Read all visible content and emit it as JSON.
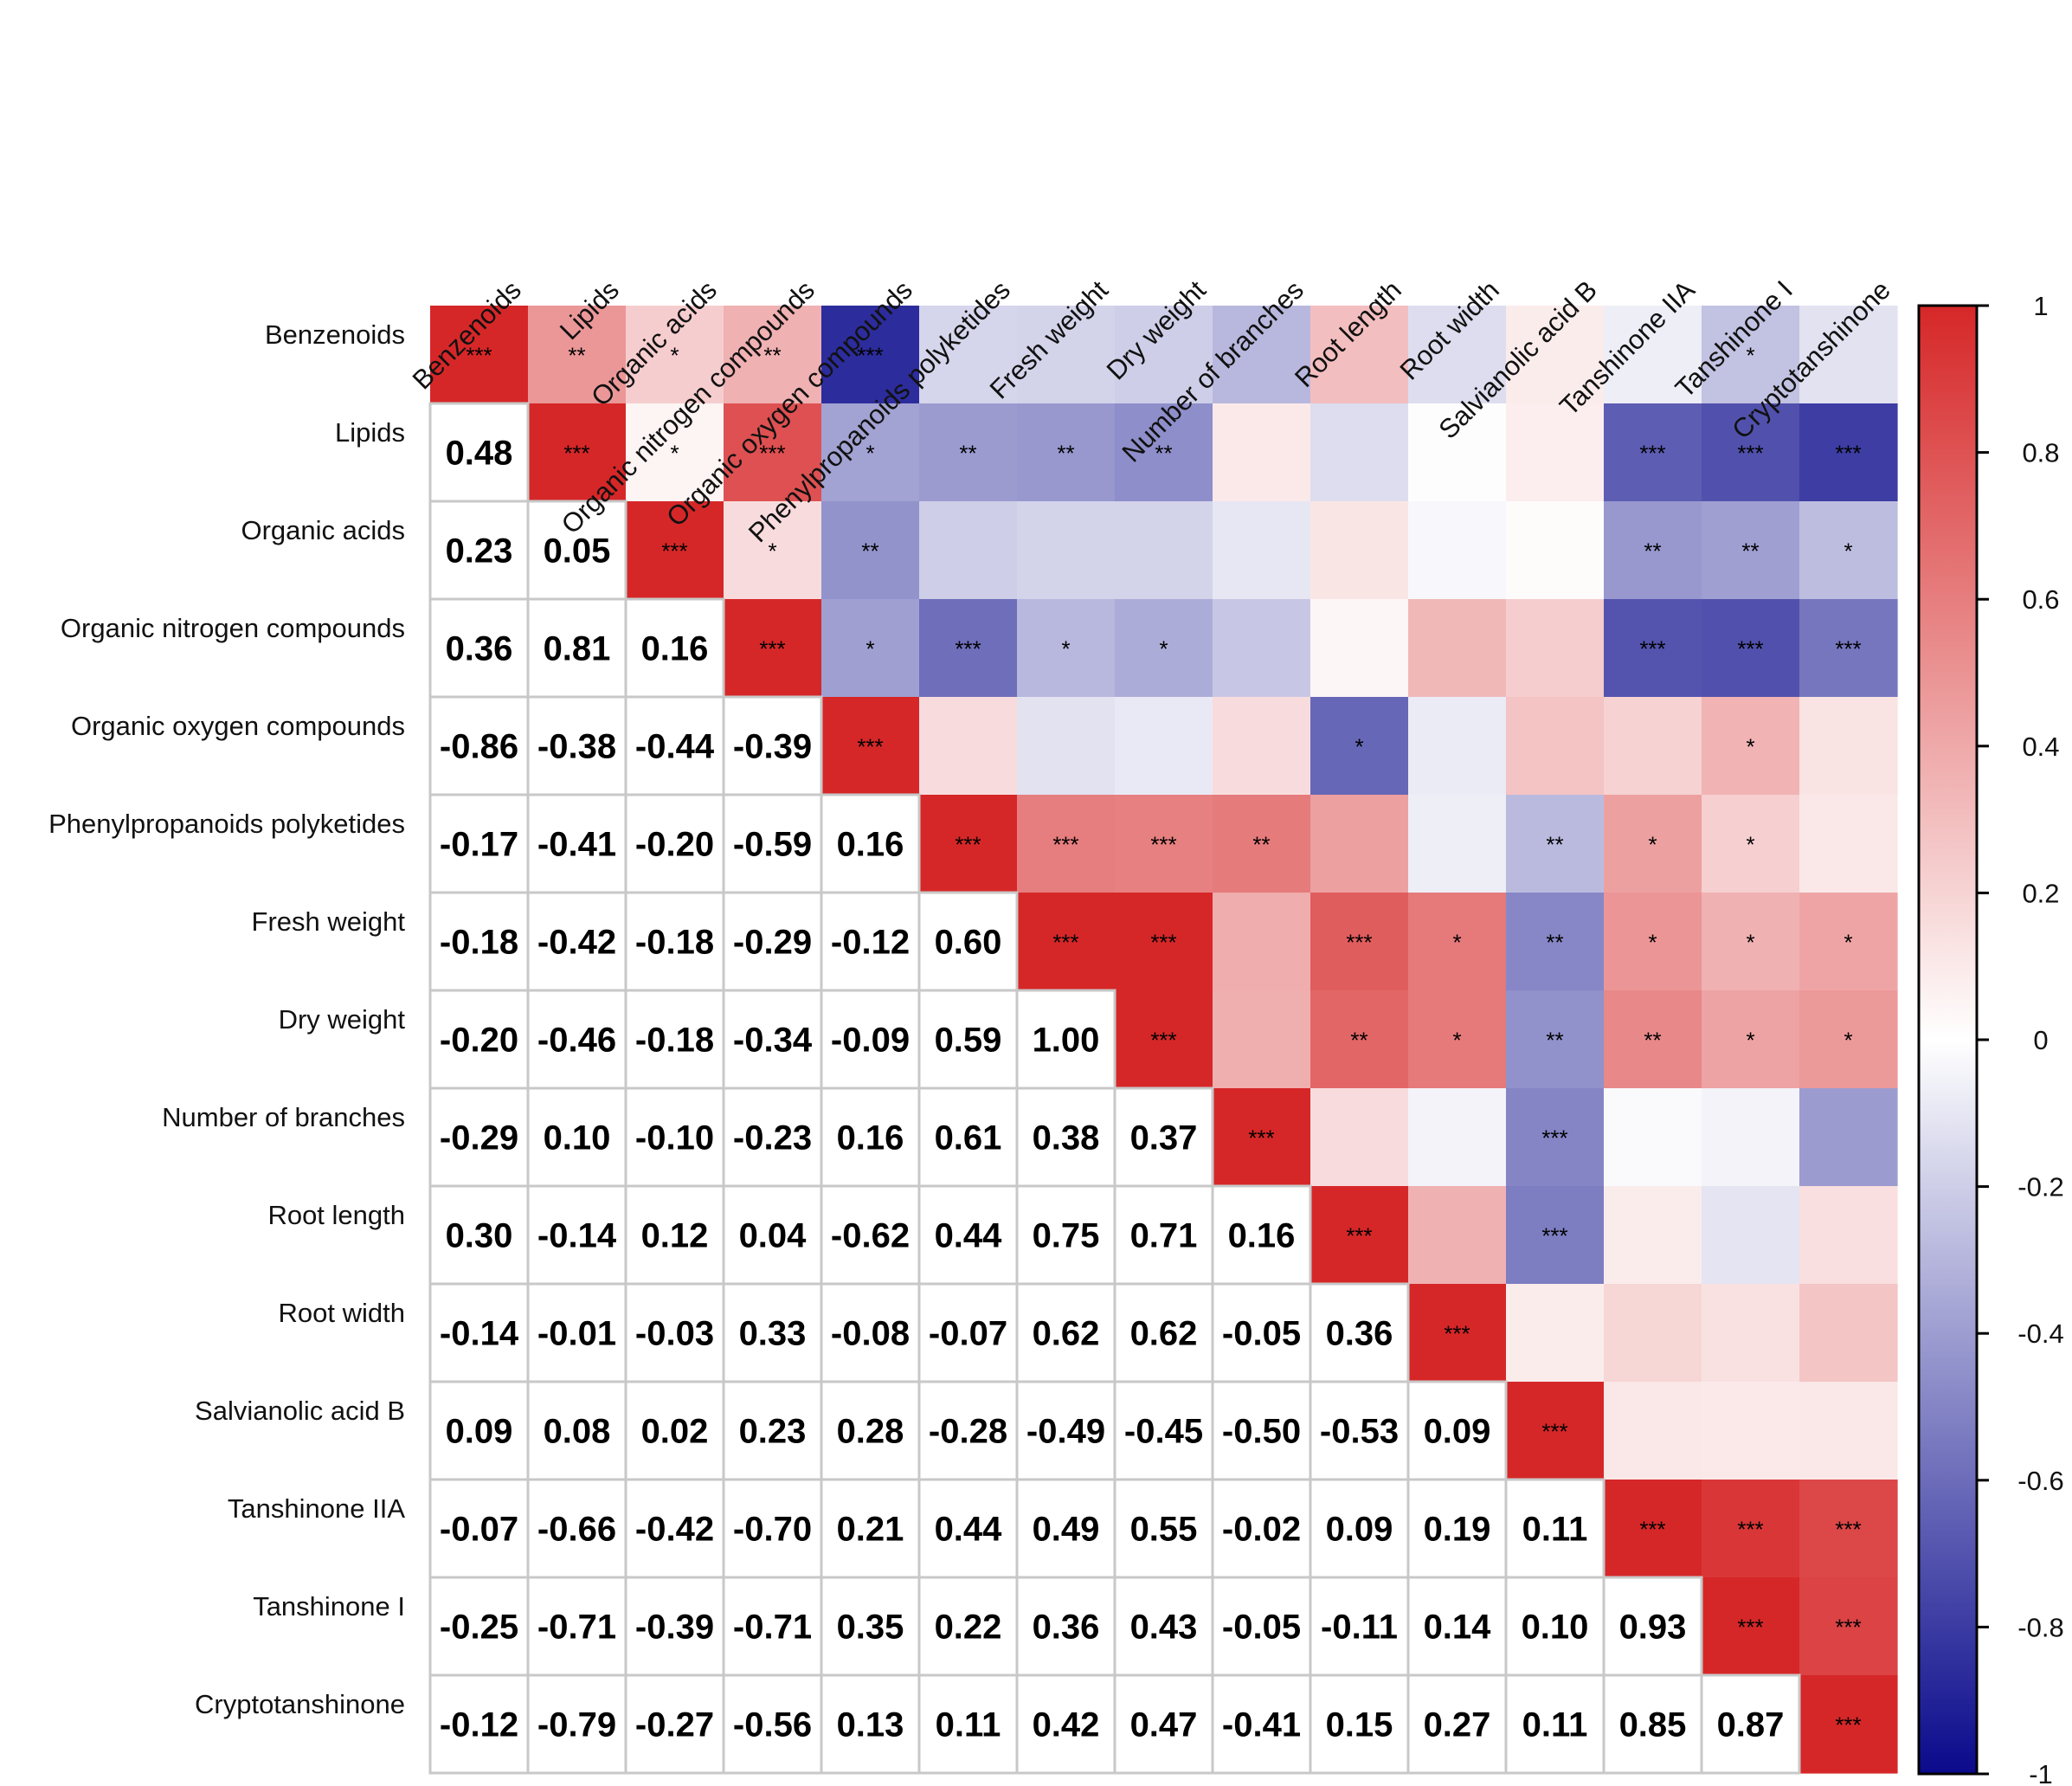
{
  "chart_data": {
    "type": "heatmap",
    "title": "",
    "variables": [
      "Benzenoids",
      "Lipids",
      "Organic acids",
      "Organic nitrogen compounds",
      "Organic oxygen compounds",
      "Phenylpropanoids polyketides",
      "Fresh weight",
      "Dry weight",
      "Number of branches",
      "Root length",
      "Root width",
      "Salvianolic acid B",
      "Tanshinone IIA",
      "Tanshinone I",
      "Cryptotanshinone"
    ],
    "lower_triangle_display": "numeric value",
    "upper_triangle_display": "color with significance stars",
    "correlations": [
      [
        "1.00",
        "0.48",
        "0.23",
        "0.36",
        "-0.86",
        "-0.17",
        "-0.18",
        "-0.20",
        "-0.29",
        "0.30",
        "-0.14",
        "0.09",
        "-0.07",
        "-0.25",
        "-0.12"
      ],
      [
        "0.48",
        "1.00",
        "0.05",
        "0.81",
        "-0.38",
        "-0.41",
        "-0.42",
        "-0.46",
        "0.10",
        "-0.14",
        "-0.01",
        "0.08",
        "-0.66",
        "-0.71",
        "-0.79"
      ],
      [
        "0.23",
        "0.05",
        "1.00",
        "0.16",
        "-0.44",
        "-0.20",
        "-0.18",
        "-0.18",
        "-0.10",
        "0.12",
        "-0.03",
        "0.02",
        "-0.42",
        "-0.39",
        "-0.27"
      ],
      [
        "0.36",
        "0.81",
        "0.16",
        "1.00",
        "-0.39",
        "-0.59",
        "-0.29",
        "-0.34",
        "-0.23",
        "0.04",
        "0.33",
        "0.23",
        "-0.70",
        "-0.71",
        "-0.56"
      ],
      [
        "-0.86",
        "-0.38",
        "-0.44",
        "-0.39",
        "1.00",
        "0.16",
        "-0.12",
        "-0.09",
        "0.16",
        "-0.62",
        "-0.08",
        "0.28",
        "0.21",
        "0.35",
        "0.13"
      ],
      [
        "-0.17",
        "-0.41",
        "-0.20",
        "-0.59",
        "0.16",
        "1.00",
        "0.60",
        "0.59",
        "0.61",
        "0.44",
        "-0.07",
        "-0.28",
        "0.44",
        "0.22",
        "0.11"
      ],
      [
        "-0.18",
        "-0.42",
        "-0.18",
        "-0.29",
        "-0.12",
        "0.60",
        "1.00",
        "1.00",
        "0.38",
        "0.75",
        "0.62",
        "-0.49",
        "0.49",
        "0.36",
        "0.42"
      ],
      [
        "-0.20",
        "-0.46",
        "-0.18",
        "-0.34",
        "-0.09",
        "0.59",
        "1.00",
        "1.00",
        "0.37",
        "0.71",
        "0.62",
        "-0.45",
        "0.55",
        "0.43",
        "0.47"
      ],
      [
        "-0.29",
        "0.10",
        "-0.10",
        "-0.23",
        "0.16",
        "0.61",
        "0.38",
        "0.37",
        "1.00",
        "0.16",
        "-0.05",
        "-0.50",
        "-0.02",
        "-0.05",
        "-0.41"
      ],
      [
        "0.30",
        "-0.14",
        "0.12",
        "0.04",
        "-0.62",
        "0.44",
        "0.75",
        "0.71",
        "0.16",
        "1.00",
        "0.36",
        "-0.53",
        "0.09",
        "-0.11",
        "0.15"
      ],
      [
        "-0.14",
        "-0.01",
        "-0.03",
        "0.33",
        "-0.08",
        "-0.07",
        "0.62",
        "0.62",
        "-0.05",
        "0.36",
        "1.00",
        "0.09",
        "0.19",
        "0.14",
        "0.27"
      ],
      [
        "0.09",
        "0.08",
        "0.02",
        "0.23",
        "0.28",
        "-0.28",
        "-0.49",
        "-0.45",
        "-0.50",
        "-0.53",
        "0.09",
        "1.00",
        "0.11",
        "0.10",
        "0.11"
      ],
      [
        "-0.07",
        "-0.66",
        "-0.42",
        "-0.70",
        "0.21",
        "0.44",
        "0.49",
        "0.55",
        "-0.02",
        "0.09",
        "0.19",
        "0.11",
        "1.00",
        "0.93",
        "0.85"
      ],
      [
        "-0.25",
        "-0.71",
        "-0.39",
        "-0.71",
        "0.35",
        "0.22",
        "0.36",
        "0.43",
        "-0.05",
        "-0.11",
        "0.14",
        "0.10",
        "0.93",
        "1.00",
        "0.87"
      ],
      [
        "-0.12",
        "-0.79",
        "-0.27",
        "-0.56",
        "0.13",
        "0.11",
        "0.42",
        "0.47",
        "-0.41",
        "0.15",
        "0.27",
        "0.11",
        "0.85",
        "0.87",
        "1.00"
      ]
    ],
    "significance": [
      [
        "***",
        "**",
        "*",
        "**",
        "***",
        "",
        "",
        "",
        "",
        "",
        "",
        "",
        "",
        "*",
        ""
      ],
      [
        "",
        "***",
        "*",
        "***",
        "*",
        "**",
        "**",
        "**",
        "",
        "",
        "",
        "",
        "***",
        "***",
        "***"
      ],
      [
        "",
        "",
        "***",
        "*",
        "**",
        "",
        "",
        "",
        "",
        "",
        "",
        "",
        "**",
        "**",
        "*"
      ],
      [
        "",
        "",
        "",
        "***",
        "*",
        "***",
        "*",
        "*",
        "",
        "",
        "",
        "",
        "***",
        "***",
        "***"
      ],
      [
        "",
        "",
        "",
        "",
        "***",
        "",
        "",
        "",
        "",
        "*",
        "",
        "",
        "",
        "*",
        ""
      ],
      [
        "",
        "",
        "",
        "",
        "",
        "***",
        "***",
        "***",
        "**",
        "",
        "",
        "**",
        "*",
        "*",
        ""
      ],
      [
        "",
        "",
        "",
        "",
        "",
        "",
        "***",
        "***",
        "",
        "***",
        "*",
        "**",
        "*",
        "*",
        "*"
      ],
      [
        "",
        "",
        "",
        "",
        "",
        "",
        "",
        "***",
        "",
        "**",
        "*",
        "**",
        "**",
        "*",
        "*"
      ],
      [
        "",
        "",
        "",
        "",
        "",
        "",
        "",
        "",
        "***",
        "",
        "",
        "***",
        "",
        "",
        ""
      ],
      [
        "",
        "",
        "",
        "",
        "",
        "",
        "",
        "",
        "",
        "***",
        "",
        "***",
        "",
        "",
        ""
      ],
      [
        "",
        "",
        "",
        "",
        "",
        "",
        "",
        "",
        "",
        "",
        "***",
        "",
        "",
        "",
        ""
      ],
      [
        "",
        "",
        "",
        "",
        "",
        "",
        "",
        "",
        "",
        "",
        "",
        "***",
        "",
        "",
        ""
      ],
      [
        "",
        "",
        "",
        "",
        "",
        "",
        "",
        "",
        "",
        "",
        "",
        "",
        "***",
        "***",
        "***"
      ],
      [
        "",
        "",
        "",
        "",
        "",
        "",
        "",
        "",
        "",
        "",
        "",
        "",
        "",
        "***",
        "***"
      ],
      [
        "",
        "",
        "",
        "",
        "",
        "",
        "",
        "",
        "",
        "",
        "",
        "",
        "",
        "",
        "***"
      ]
    ],
    "colorbar": {
      "range": [
        -1,
        1
      ],
      "ticks": [
        "1",
        "0.8",
        "0.6",
        "0.4",
        "0.2",
        "0",
        "-0.2",
        "-0.4",
        "-0.6",
        "-0.8",
        "-1"
      ],
      "colors": {
        "negative": "#0a0a8c",
        "zero": "#ffffff",
        "positive": "#d62728"
      }
    }
  }
}
